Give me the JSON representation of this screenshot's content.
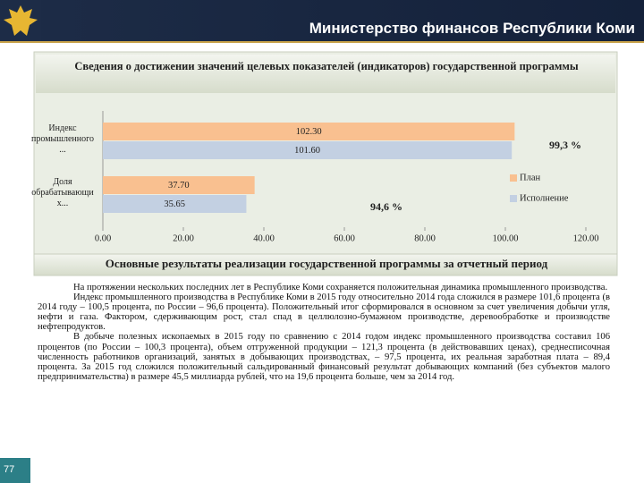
{
  "header": {
    "title": "Министерство финансов Республики Коми"
  },
  "chart_data": {
    "type": "hbar",
    "title": "Сведения о достижении значений целевых показателей (индикаторов) государственной программы",
    "categories": [
      "Индекс промышленного...",
      "Доля обрабатывающих..."
    ],
    "series": [
      {
        "name": "План",
        "color": "#f9c090",
        "values": [
          102.3,
          37.7
        ],
        "value_labels": [
          "102.30",
          "37.70"
        ]
      },
      {
        "name": "Исполнение",
        "color": "#c3d0e2",
        "values": [
          101.6,
          35.65
        ],
        "value_labels": [
          "101.60",
          "35.65"
        ]
      }
    ],
    "xlim": [
      0,
      120
    ],
    "xticks": [
      {
        "value": 0,
        "label": "0.00"
      },
      {
        "value": 20,
        "label": "20.00"
      },
      {
        "value": 40,
        "label": "40.00"
      },
      {
        "value": 60,
        "label": "60.00"
      },
      {
        "value": 80,
        "label": "80.00"
      },
      {
        "value": 100,
        "label": "100.00"
      },
      {
        "value": 120,
        "label": "120.00"
      }
    ],
    "annotations": [
      "99,3 %",
      "94,6 %"
    ],
    "legend": "right",
    "grid": false
  },
  "section": {
    "title": "Основные результаты реализации государственной программы за отчетный период"
  },
  "paragraphs": [
    "На протяжении нескольких последних лет в Республике Коми сохраняется положительная динамика промышленного производства.",
    "Индекс промышленного производства в Республике Коми в 2015 году относительно 2014 года сложился в размере 101,6 процента (в 2014 году – 100,5 процента, по России – 96,6 процента). Положительный итог сформировался в основном за счет увеличения добычи угля, нефти и газа. Фактором, сдерживающим рост, стал спад в целлюлозно-бумажном производстве, деревообработке и производстве нефтепродуктов.",
    "В добыче полезных ископаемых в 2015 году по сравнению с 2014 годом индекс промышленного производства составил 106 процентов (по России – 100,3 процента), объем отгруженной продукции – 121,3 процента (в действовавших ценах), среднесписочная численность работников организаций, занятых в добывающих производствах, – 97,5 процента, их реальная заработная плата – 89,4 процента. За 2015 год сложился положительный сальдированный финансовый результат добывающих компаний (без субъектов малого предпринимательства) в размере 45,5 миллиарда рублей, что на 19,6 процента больше, чем за 2014 год."
  ],
  "page_number": "77"
}
